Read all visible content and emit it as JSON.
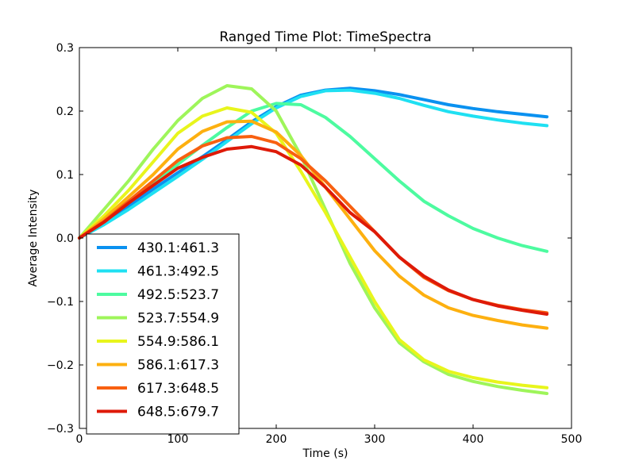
{
  "chart_data": {
    "type": "line",
    "title": "Ranged Time Plot: TimeSpectra",
    "xlabel": "Time (s)",
    "ylabel": "Average Intensity",
    "xlim": [
      0,
      500
    ],
    "ylim": [
      -0.3,
      0.3
    ],
    "xticks": [
      0,
      100,
      200,
      300,
      400,
      500
    ],
    "yticks": [
      -0.3,
      -0.2,
      -0.1,
      0.0,
      0.1,
      0.2,
      0.3
    ],
    "xtick_labels": [
      "0",
      "100",
      "200",
      "300",
      "400",
      "500"
    ],
    "ytick_labels": [
      "−0.3",
      "−0.2",
      "−0.1",
      "0.0",
      "0.1",
      "0.2",
      "0.3"
    ],
    "grid": false,
    "legend_position": "lower-left",
    "series": [
      {
        "name": "430.1:461.3",
        "color": "#0a91f0",
        "x": [
          0,
          25,
          50,
          75,
          100,
          125,
          150,
          175,
          200,
          225,
          250,
          275,
          300,
          325,
          350,
          375,
          400,
          425,
          450,
          475
        ],
        "y": [
          0.0,
          0.025,
          0.05,
          0.077,
          0.103,
          0.128,
          0.155,
          0.183,
          0.207,
          0.225,
          0.233,
          0.236,
          0.232,
          0.226,
          0.218,
          0.21,
          0.204,
          0.199,
          0.195,
          0.191
        ]
      },
      {
        "name": "461.3:492.5",
        "color": "#1fe0f2",
        "x": [
          0,
          25,
          50,
          75,
          100,
          125,
          150,
          175,
          200,
          225,
          250,
          275,
          300,
          325,
          350,
          375,
          400,
          425,
          450,
          475
        ],
        "y": [
          0.0,
          0.021,
          0.045,
          0.071,
          0.097,
          0.124,
          0.152,
          0.18,
          0.205,
          0.223,
          0.232,
          0.233,
          0.228,
          0.22,
          0.209,
          0.199,
          0.192,
          0.186,
          0.181,
          0.177
        ]
      },
      {
        "name": "492.5:523.7",
        "color": "#4dfba0",
        "x": [
          0,
          25,
          50,
          75,
          100,
          125,
          150,
          175,
          200,
          225,
          250,
          275,
          300,
          325,
          350,
          375,
          400,
          425,
          450,
          475
        ],
        "y": [
          0.0,
          0.027,
          0.056,
          0.086,
          0.116,
          0.146,
          0.174,
          0.2,
          0.212,
          0.21,
          0.19,
          0.16,
          0.125,
          0.09,
          0.058,
          0.035,
          0.015,
          0.0,
          -0.012,
          -0.021
        ]
      },
      {
        "name": "523.7:554.9",
        "color": "#9ef55a",
        "x": [
          0,
          25,
          50,
          75,
          100,
          125,
          150,
          175,
          200,
          225,
          250,
          275,
          300,
          325,
          350,
          375,
          400,
          425,
          450,
          475
        ],
        "y": [
          0.0,
          0.045,
          0.09,
          0.14,
          0.185,
          0.22,
          0.24,
          0.235,
          0.2,
          0.13,
          0.045,
          -0.04,
          -0.11,
          -0.165,
          -0.195,
          -0.215,
          -0.226,
          -0.234,
          -0.24,
          -0.245
        ]
      },
      {
        "name": "554.9:586.1",
        "color": "#e8f51c",
        "x": [
          0,
          25,
          50,
          75,
          100,
          125,
          150,
          175,
          200,
          225,
          250,
          275,
          300,
          325,
          350,
          375,
          400,
          425,
          450,
          475
        ],
        "y": [
          0.0,
          0.035,
          0.075,
          0.12,
          0.165,
          0.192,
          0.205,
          0.198,
          0.165,
          0.105,
          0.04,
          -0.03,
          -0.1,
          -0.16,
          -0.192,
          -0.21,
          -0.22,
          -0.227,
          -0.232,
          -0.236
        ]
      },
      {
        "name": "586.1:617.3",
        "color": "#fdb010",
        "x": [
          0,
          25,
          50,
          75,
          100,
          125,
          150,
          175,
          200,
          225,
          250,
          275,
          300,
          325,
          350,
          375,
          400,
          425,
          450,
          475
        ],
        "y": [
          0.0,
          0.03,
          0.065,
          0.1,
          0.14,
          0.168,
          0.183,
          0.184,
          0.167,
          0.13,
          0.08,
          0.03,
          -0.02,
          -0.06,
          -0.09,
          -0.11,
          -0.122,
          -0.13,
          -0.137,
          -0.142
        ]
      },
      {
        "name": "617.3:648.5",
        "color": "#f86010",
        "x": [
          0,
          25,
          50,
          75,
          100,
          125,
          150,
          175,
          200,
          225,
          250,
          275,
          300,
          325,
          350,
          375,
          400,
          425,
          450,
          475
        ],
        "y": [
          0.0,
          0.026,
          0.058,
          0.09,
          0.122,
          0.145,
          0.158,
          0.16,
          0.15,
          0.125,
          0.09,
          0.05,
          0.01,
          -0.03,
          -0.062,
          -0.083,
          -0.097,
          -0.106,
          -0.113,
          -0.118
        ]
      },
      {
        "name": "648.5:679.7",
        "color": "#de1a08",
        "x": [
          0,
          25,
          50,
          75,
          100,
          125,
          150,
          175,
          200,
          225,
          250,
          275,
          300,
          325,
          350,
          375,
          400,
          425,
          450,
          475
        ],
        "y": [
          0.0,
          0.025,
          0.055,
          0.083,
          0.11,
          0.127,
          0.14,
          0.144,
          0.136,
          0.115,
          0.08,
          0.04,
          0.01,
          -0.03,
          -0.06,
          -0.082,
          -0.097,
          -0.107,
          -0.114,
          -0.12
        ]
      }
    ]
  }
}
